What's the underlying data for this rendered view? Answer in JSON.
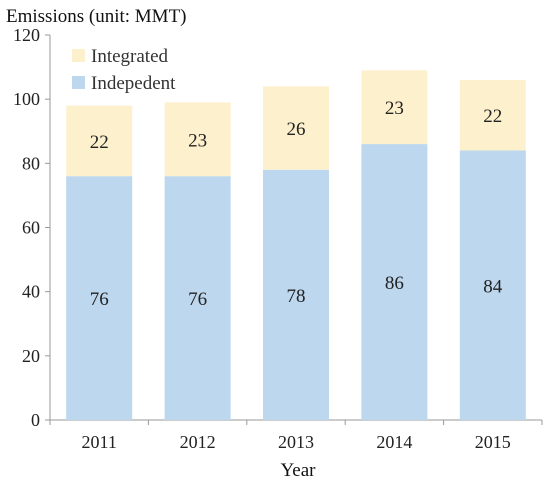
{
  "chart_data": {
    "type": "bar",
    "stacked": true,
    "title": "",
    "ylabel": "Emissions (unit: MMT)",
    "xlabel": "Year",
    "categories": [
      "2011",
      "2012",
      "2013",
      "2014",
      "2015"
    ],
    "ylim": [
      0,
      120
    ],
    "yticks": [
      0,
      20,
      40,
      60,
      80,
      100,
      120
    ],
    "grid": false,
    "legend_position": "top-left",
    "series": [
      {
        "name": "Indepedent",
        "values": [
          76,
          76,
          78,
          86,
          84
        ],
        "color": "#bdd7ee"
      },
      {
        "name": "Integrated",
        "values": [
          22,
          23,
          26,
          23,
          22
        ],
        "color": "#fdf1cd"
      }
    ]
  }
}
